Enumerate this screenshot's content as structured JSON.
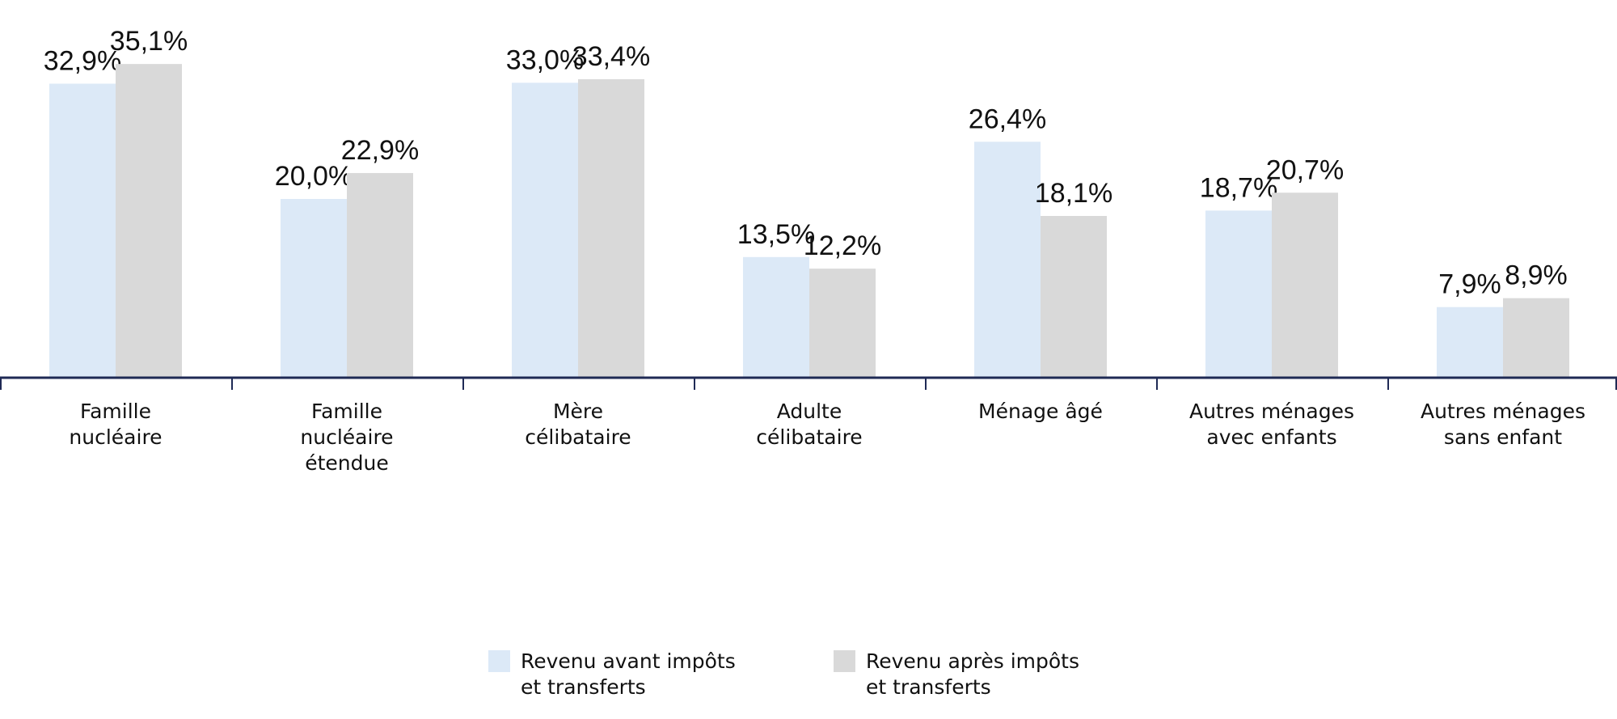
{
  "chart_data": {
    "type": "bar",
    "categories": [
      [
        "Famille",
        "nucléaire"
      ],
      [
        "Famille",
        "nucléaire",
        "étendue"
      ],
      [
        "Mère",
        "célibataire"
      ],
      [
        "Adulte",
        "célibataire"
      ],
      [
        "Ménage âgé"
      ],
      [
        "Autres ménages",
        "avec enfants"
      ],
      [
        "Autres ménages",
        "sans enfant"
      ]
    ],
    "series": [
      {
        "name": [
          "Revenu avant impôts",
          "et transferts"
        ],
        "color": "#dce9f7",
        "values": [
          32.9,
          20.0,
          33.0,
          13.5,
          26.4,
          18.7,
          7.9
        ],
        "labels": [
          "32,9%",
          "20,0%",
          "33,0%",
          "13,5%",
          "26,4%",
          "18,7%",
          "7,9%"
        ]
      },
      {
        "name": [
          "Revenu après impôts",
          "et transferts"
        ],
        "color": "#d9d9d9",
        "values": [
          35.1,
          22.9,
          33.4,
          12.2,
          18.1,
          20.7,
          8.9
        ],
        "labels": [
          "35,1%",
          "22,9%",
          "33,4%",
          "12,2%",
          "18,1%",
          "20,7%",
          "8,9%"
        ]
      }
    ],
    "ylim": [
      0,
      42
    ],
    "axis_color": "#1f2a55",
    "legend": "bottom-center",
    "grid": false
  }
}
